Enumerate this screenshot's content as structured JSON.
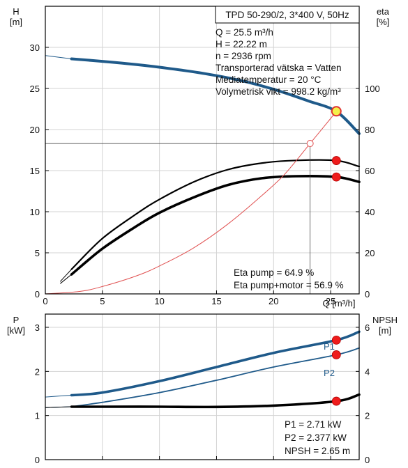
{
  "chart_data": [
    {
      "type": "line",
      "title": "TPD 50-290/2, 3*400 V, 50Hz",
      "x_axis": {
        "label": "Q [m³/h]",
        "lim": [
          0,
          27.5
        ],
        "ticks": [
          0,
          5,
          10,
          15,
          20,
          25
        ]
      },
      "y_left": {
        "label_top": "H",
        "label_unit": "[m]",
        "lim": [
          0,
          35
        ],
        "ticks": [
          0,
          5,
          10,
          15,
          20,
          25,
          30
        ]
      },
      "y_right": {
        "label_top": "eta",
        "label_unit": "[%]",
        "lim": [
          0,
          140
        ],
        "ticks": [
          0,
          20,
          40,
          60,
          80,
          100
        ]
      },
      "grid": true,
      "info_lines": [
        "Q = 25.5 m³/h",
        "H = 22.22 m",
        "n = 2936 rpm",
        "Transporterad vätska = Vatten",
        "Mediatemperatur = 20 °C",
        "Volymetrisk vikt = 998.2 kg/m³"
      ],
      "bottom_lines": [
        "Eta pump = 64.9 %",
        "Eta pump+motor = 56.9 %"
      ],
      "series": [
        {
          "key": "H",
          "axis": "left",
          "color": "#1f5a8a",
          "points": [
            [
              0,
              29.0
            ],
            [
              2.3,
              28.6
            ],
            [
              5,
              28.3
            ],
            [
              8,
              27.9
            ],
            [
              11,
              27.4
            ],
            [
              14,
              26.8
            ],
            [
              17,
              26.0
            ],
            [
              20,
              24.9
            ],
            [
              23,
              23.5
            ],
            [
              25.5,
              22.2
            ],
            [
              27.5,
              19.5
            ]
          ],
          "solid_from": 2.3
        },
        {
          "key": "eta_pump",
          "axis": "right",
          "color": "#000000",
          "points": [
            [
              1.3,
              6
            ],
            [
              2.3,
              12
            ],
            [
              5,
              27
            ],
            [
              8,
              39
            ],
            [
              10,
              46
            ],
            [
              13,
              54.5
            ],
            [
              16,
              60.5
            ],
            [
              19,
              63.7
            ],
            [
              22,
              65
            ],
            [
              25.5,
              64.9
            ],
            [
              27.5,
              62
            ]
          ]
        },
        {
          "key": "eta_pump_motor",
          "axis": "right",
          "color": "#000000",
          "points": [
            [
              1.3,
              5
            ],
            [
              2.3,
              9.5
            ],
            [
              5,
              22
            ],
            [
              8,
              33
            ],
            [
              10,
              39.5
            ],
            [
              13,
              47
            ],
            [
              16,
              53
            ],
            [
              19,
              56.3
            ],
            [
              22,
              57.3
            ],
            [
              25.5,
              56.9
            ],
            [
              27.5,
              54.5
            ]
          ]
        },
        {
          "key": "system",
          "axis": "left",
          "color": "#e05050",
          "points": [
            [
              0,
              0
            ],
            [
              3,
              0.3
            ],
            [
              5,
              0.9
            ],
            [
              8,
              2.2
            ],
            [
              10,
              3.4
            ],
            [
              13,
              5.6
            ],
            [
              16,
              8.5
            ],
            [
              19,
              12.0
            ],
            [
              21,
              14.6
            ],
            [
              23.2,
              18.3
            ],
            [
              25.5,
              22.2
            ]
          ]
        }
      ],
      "operating_points": [
        {
          "series": "H",
          "x": 25.5,
          "y": 22.22,
          "style": "yellow"
        },
        {
          "series": "eta_pump",
          "x": 25.5,
          "y": 64.9
        },
        {
          "series": "eta_pump_motor",
          "x": 25.5,
          "y": 56.9
        }
      ],
      "intersection": {
        "x": 23.2,
        "y": 18.3
      }
    },
    {
      "type": "line",
      "x_axis": {
        "lim": [
          0,
          27.5
        ],
        "ticks": [
          0,
          5,
          10,
          15,
          20,
          25
        ]
      },
      "y_left": {
        "label_top": "P",
        "label_unit": "[kW]",
        "lim": [
          0,
          3.3
        ],
        "ticks": [
          0,
          1,
          2,
          3
        ]
      },
      "y_right": {
        "label_top": "NPSH",
        "label_unit": "[m]",
        "lim": [
          0,
          6.6
        ],
        "ticks": [
          0,
          2,
          4,
          6
        ]
      },
      "grid": true,
      "bottom_lines": [
        "P1 = 2.71 kW",
        "P2 = 2.377 kW",
        "NPSH = 2.65 m"
      ],
      "series": [
        {
          "key": "P1",
          "name": "P1",
          "axis": "left",
          "color": "#1f5a8a",
          "points": [
            [
              0,
              1.42
            ],
            [
              2.3,
              1.46
            ],
            [
              5,
              1.52
            ],
            [
              10,
              1.78
            ],
            [
              15,
              2.1
            ],
            [
              20,
              2.42
            ],
            [
              25.5,
              2.71
            ],
            [
              27.5,
              2.9
            ]
          ],
          "solid_from": 2.3,
          "thick": true
        },
        {
          "key": "P2",
          "name": "P2",
          "axis": "left",
          "color": "#1f5a8a",
          "points": [
            [
              0,
              1.18
            ],
            [
              2.3,
              1.2
            ],
            [
              5,
              1.3
            ],
            [
              10,
              1.52
            ],
            [
              15,
              1.8
            ],
            [
              20,
              2.1
            ],
            [
              25.5,
              2.377
            ],
            [
              27.5,
              2.53
            ]
          ],
          "solid_from": 2.3,
          "thick": false
        },
        {
          "key": "NPSH",
          "axis": "right",
          "color": "#000000",
          "points": [
            [
              0,
              2.36
            ],
            [
              2.3,
              2.4
            ],
            [
              5,
              2.4
            ],
            [
              10,
              2.4
            ],
            [
              15,
              2.39
            ],
            [
              20,
              2.45
            ],
            [
              25.5,
              2.65
            ],
            [
              27.5,
              2.95
            ]
          ],
          "solid_from": 2.3,
          "thick": true
        }
      ],
      "operating_points": [
        {
          "series": "P1",
          "x": 25.5,
          "y": 2.71
        },
        {
          "series": "P2",
          "x": 25.5,
          "y": 2.377
        },
        {
          "series": "NPSH",
          "x": 25.5,
          "y": 2.65
        }
      ]
    }
  ]
}
